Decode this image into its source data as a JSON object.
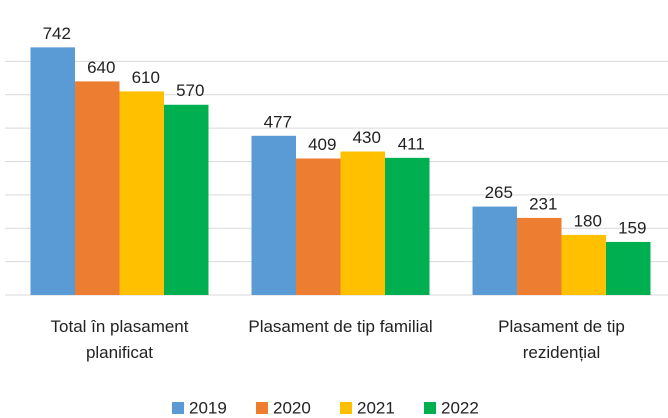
{
  "chart_data": {
    "type": "bar",
    "categories": [
      "Total în plasament planificat",
      "Plasament de tip familial",
      "Plasament de tip rezidențial"
    ],
    "series": [
      {
        "name": "2019",
        "color": "#5b9bd5",
        "values": [
          742,
          477,
          265
        ]
      },
      {
        "name": "2020",
        "color": "#ed7d31",
        "values": [
          640,
          409,
          231
        ]
      },
      {
        "name": "2021",
        "color": "#ffc000",
        "values": [
          610,
          430,
          180
        ]
      },
      {
        "name": "2022",
        "color": "#00b050",
        "values": [
          570,
          411,
          159
        ]
      }
    ],
    "ylim": [
      0,
      800
    ],
    "yticks": [
      0,
      100,
      200,
      300,
      400,
      500,
      600,
      700
    ],
    "grid": true,
    "legend": "bottom"
  }
}
